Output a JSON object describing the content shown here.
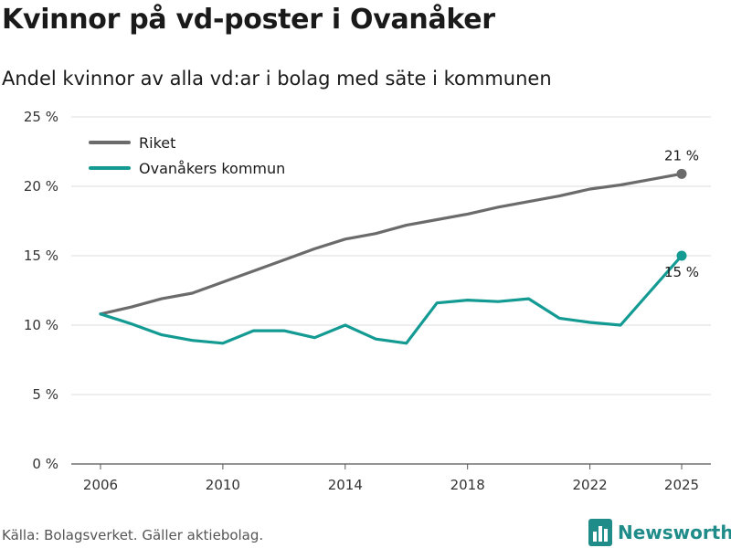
{
  "header": {
    "title": "Kvinnor på vd-poster i Ovanåker",
    "subtitle": "Andel kvinnor av alla vd:ar i bolag med säte i kommunen"
  },
  "footer": {
    "source": "Källa: Bolagsverket. Gäller aktiebolag.",
    "brand": "Newsworthy",
    "brand_icon": "bar-chart-icon",
    "brand_color": "#1f8c8a"
  },
  "chart_data": {
    "type": "line",
    "title": "Kvinnor på vd-poster i Ovanåker",
    "subtitle": "Andel kvinnor av alla vd:ar i bolag med säte i kommunen",
    "xlabel": "",
    "ylabel": "",
    "x": [
      2006,
      2007,
      2008,
      2009,
      2010,
      2011,
      2012,
      2013,
      2014,
      2015,
      2016,
      2017,
      2018,
      2019,
      2020,
      2021,
      2022,
      2023,
      2024,
      2025
    ],
    "xticks": [
      2006,
      2010,
      2014,
      2018,
      2022,
      2025
    ],
    "xtick_labels": [
      "2006",
      "2010",
      "2014",
      "2018",
      "2022",
      "2025"
    ],
    "xlim": [
      2006,
      2025
    ],
    "ylim": [
      0,
      25
    ],
    "yticks": [
      0,
      5,
      10,
      15,
      20,
      25
    ],
    "ytick_labels": [
      "0 %",
      "5 %",
      "10 %",
      "15 %",
      "20 %",
      "25 %"
    ],
    "grid": true,
    "legend_position": "top-left",
    "series": [
      {
        "name": "Riket",
        "color": "#6b6b6b",
        "values": [
          10.8,
          11.3,
          11.9,
          12.3,
          13.1,
          13.9,
          14.7,
          15.5,
          16.2,
          16.6,
          17.2,
          17.6,
          18.0,
          18.5,
          18.9,
          19.3,
          19.8,
          20.1,
          20.5,
          20.9
        ],
        "end_label": "21 %"
      },
      {
        "name": "Ovanåkers kommun",
        "color": "#129a93",
        "values": [
          10.8,
          10.1,
          9.3,
          8.9,
          8.7,
          9.6,
          9.6,
          9.1,
          10.0,
          9.0,
          8.7,
          11.6,
          11.8,
          11.7,
          11.9,
          10.5,
          10.2,
          10.0,
          12.5,
          15.0
        ],
        "end_label": "15 %"
      }
    ]
  }
}
